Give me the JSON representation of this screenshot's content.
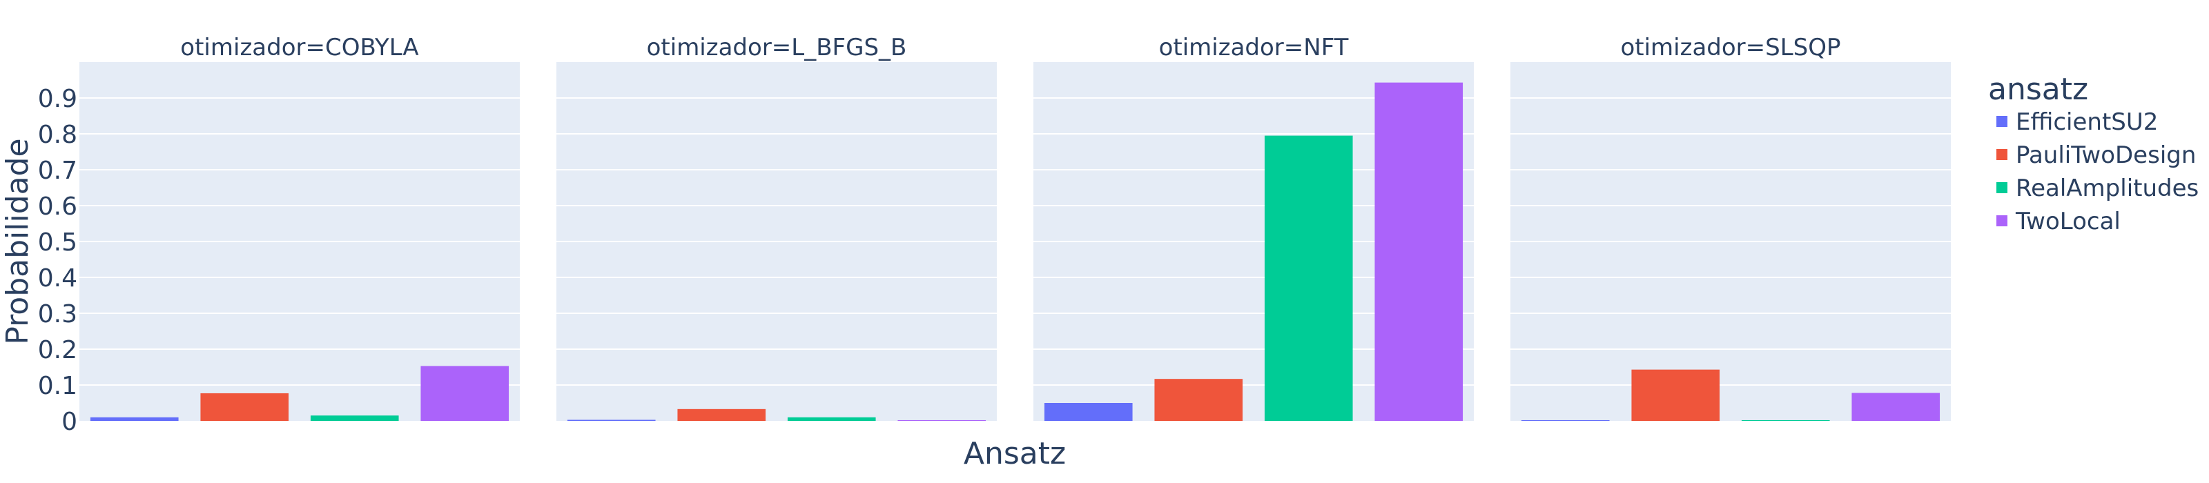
{
  "chart_data": {
    "type": "bar",
    "facet_label": "otimizador",
    "facets": [
      "COBYLA",
      "L_BFGS_B",
      "NFT",
      "SLSQP"
    ],
    "facet_titles": [
      "otimizador=COBYLA",
      "otimizador=L_BFGS_B",
      "otimizador=NFT",
      "otimizador=SLSQP"
    ],
    "categories": [
      "EfficientSU2",
      "PauliTwoDesign",
      "RealAmplitudes",
      "TwoLocal"
    ],
    "series": [
      {
        "name": "EfficientSU2",
        "color": "#636efa",
        "values": [
          0.01,
          0.003,
          0.05,
          0.002
        ]
      },
      {
        "name": "PauliTwoDesign",
        "color": "#ef553b",
        "values": [
          0.077,
          0.033,
          0.117,
          0.143
        ]
      },
      {
        "name": "RealAmplitudes",
        "color": "#00cc96",
        "values": [
          0.015,
          0.01,
          0.795,
          0.002
        ]
      },
      {
        "name": "TwoLocal",
        "color": "#ab63fa",
        "values": [
          0.153,
          0.002,
          0.943,
          0.078
        ]
      }
    ],
    "xlabel": "Ansatz",
    "ylabel": "Probabilidade",
    "ylim": [
      0,
      1.0
    ],
    "yticks": [
      0,
      0.1,
      0.2,
      0.3,
      0.4,
      0.5,
      0.6,
      0.7,
      0.8,
      0.9
    ],
    "ytick_labels": [
      "0",
      "0.1",
      "0.2",
      "0.3",
      "0.4",
      "0.5",
      "0.6",
      "0.7",
      "0.8",
      "0.9"
    ],
    "grid": true,
    "legend": {
      "title": "ansatz",
      "position": "right"
    },
    "colors": {
      "plot_bg": "#e5ecf6",
      "grid": "#ffffff",
      "text": "#2a3f5f"
    }
  }
}
